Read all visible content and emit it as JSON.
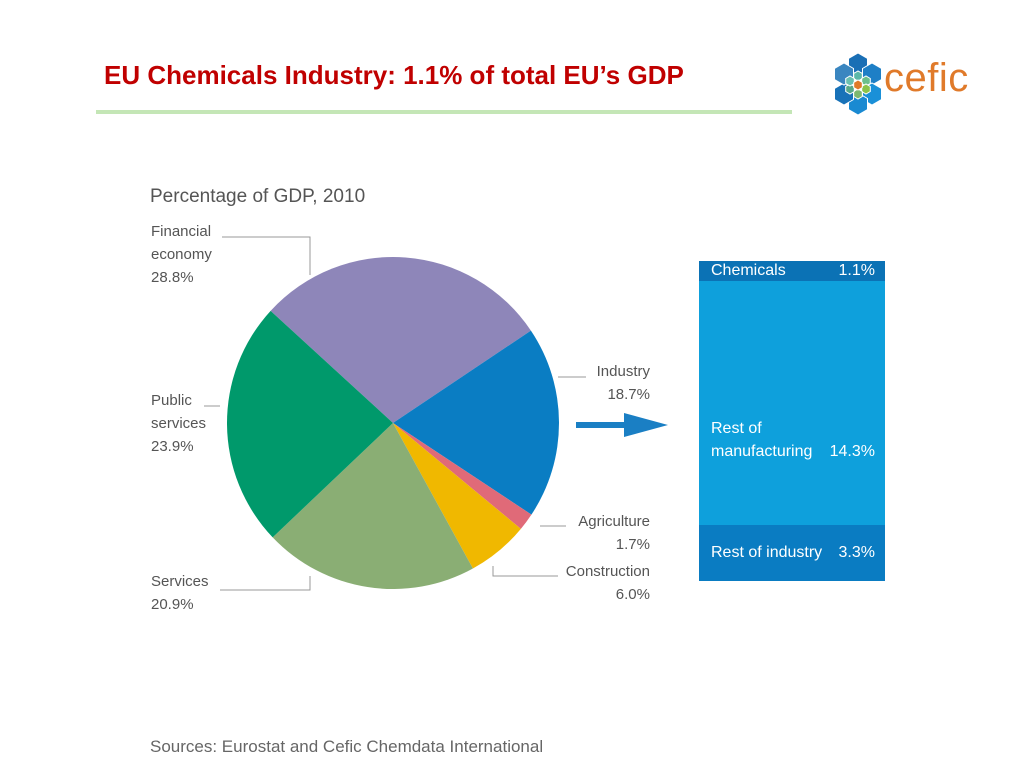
{
  "title": "EU Chemicals Industry: 1.1% of total EU’s GDP",
  "logo": {
    "text": "cefic"
  },
  "sources": "Sources: Eurostat and Cefic Chemdata International",
  "chart_data": [
    {
      "type": "pie",
      "title": "Percentage of GDP, 2010",
      "slices": [
        {
          "label": "Financial economy",
          "value": 28.8,
          "display": "28.8%",
          "color": "#8e86b9"
        },
        {
          "label": "Industry",
          "value": 18.7,
          "display": "18.7%",
          "color": "#0a7dc3"
        },
        {
          "label": "Agriculture",
          "value": 1.7,
          "display": "1.7%",
          "color": "#e06a78"
        },
        {
          "label": "Construction",
          "value": 6.0,
          "display": "6.0%",
          "color": "#f0b800"
        },
        {
          "label": "Services",
          "value": 20.9,
          "display": "20.9%",
          "color": "#8aae74"
        },
        {
          "label": "Public services",
          "value": 23.9,
          "display": "23.9%",
          "color": "#00996b"
        }
      ]
    },
    {
      "type": "bar",
      "stacked": true,
      "segments": [
        {
          "label": "Chemicals",
          "value": 1.1,
          "display": "1.1%",
          "color": "#0b72b5"
        },
        {
          "label": "Rest of manufacturing",
          "label_line1": "Rest of",
          "label_line2": "manufacturing",
          "value": 14.3,
          "display": "14.3%",
          "color": "#0ea0dc"
        },
        {
          "label": "Rest of industry",
          "value": 3.3,
          "display": "3.3%",
          "color": "#0a7cc2"
        }
      ]
    }
  ]
}
